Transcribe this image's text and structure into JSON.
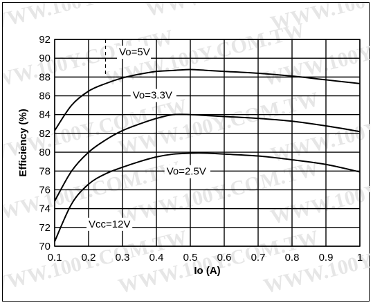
{
  "watermark": "WWW.100Y.COM.TW",
  "chart_data": {
    "type": "line",
    "title": "",
    "xlabel": "Io (A)",
    "ylabel": "Efficiency (%)",
    "xlim": [
      0.1,
      1
    ],
    "ylim": [
      70,
      92
    ],
    "x_ticks": [
      "0.1",
      "0.2",
      "0.3",
      "0.4",
      "0.5",
      "0.6",
      "0.7",
      "0.8",
      "0.9",
      "1"
    ],
    "y_ticks": [
      "70",
      "72",
      "74",
      "76",
      "78",
      "80",
      "82",
      "84",
      "86",
      "88",
      "90",
      "92"
    ],
    "grid": true,
    "series": [
      {
        "name": "Vo=5V",
        "x": [
          0.1,
          0.15,
          0.2,
          0.25,
          0.3,
          0.35,
          0.4,
          0.45,
          0.5,
          0.55,
          0.6,
          0.7,
          0.8,
          0.9,
          1.0
        ],
        "y": [
          82.3,
          85.0,
          86.5,
          87.3,
          87.9,
          88.3,
          88.6,
          88.7,
          88.8,
          88.7,
          88.6,
          88.4,
          88.1,
          87.7,
          87.3
        ]
      },
      {
        "name": "Vo=3.3V",
        "x": [
          0.1,
          0.15,
          0.2,
          0.25,
          0.3,
          0.35,
          0.4,
          0.45,
          0.5,
          0.55,
          0.6,
          0.7,
          0.8,
          0.9,
          1.0
        ],
        "y": [
          74.8,
          78.0,
          80.0,
          81.3,
          82.3,
          83.0,
          83.6,
          84.0,
          84.0,
          83.9,
          83.8,
          83.6,
          83.3,
          82.8,
          82.2
        ]
      },
      {
        "name": "Vo=2.5V",
        "x": [
          0.1,
          0.15,
          0.2,
          0.25,
          0.3,
          0.35,
          0.4,
          0.45,
          0.5,
          0.55,
          0.6,
          0.7,
          0.8,
          0.9,
          1.0
        ],
        "y": [
          70.5,
          74.5,
          76.6,
          77.7,
          78.4,
          79.0,
          79.5,
          79.8,
          79.9,
          79.9,
          79.8,
          79.6,
          79.2,
          78.7,
          77.9
        ]
      }
    ],
    "annotations": [
      {
        "text": "Vo=5V",
        "x": 0.29,
        "y": 90.3
      },
      {
        "text": "Vo=3.3V",
        "x": 0.33,
        "y": 85.7
      },
      {
        "text": "Vo=2.5V",
        "x": 0.43,
        "y": 77.6
      },
      {
        "text": "Vcc=12V",
        "x": 0.2,
        "y": 72.0
      }
    ]
  }
}
